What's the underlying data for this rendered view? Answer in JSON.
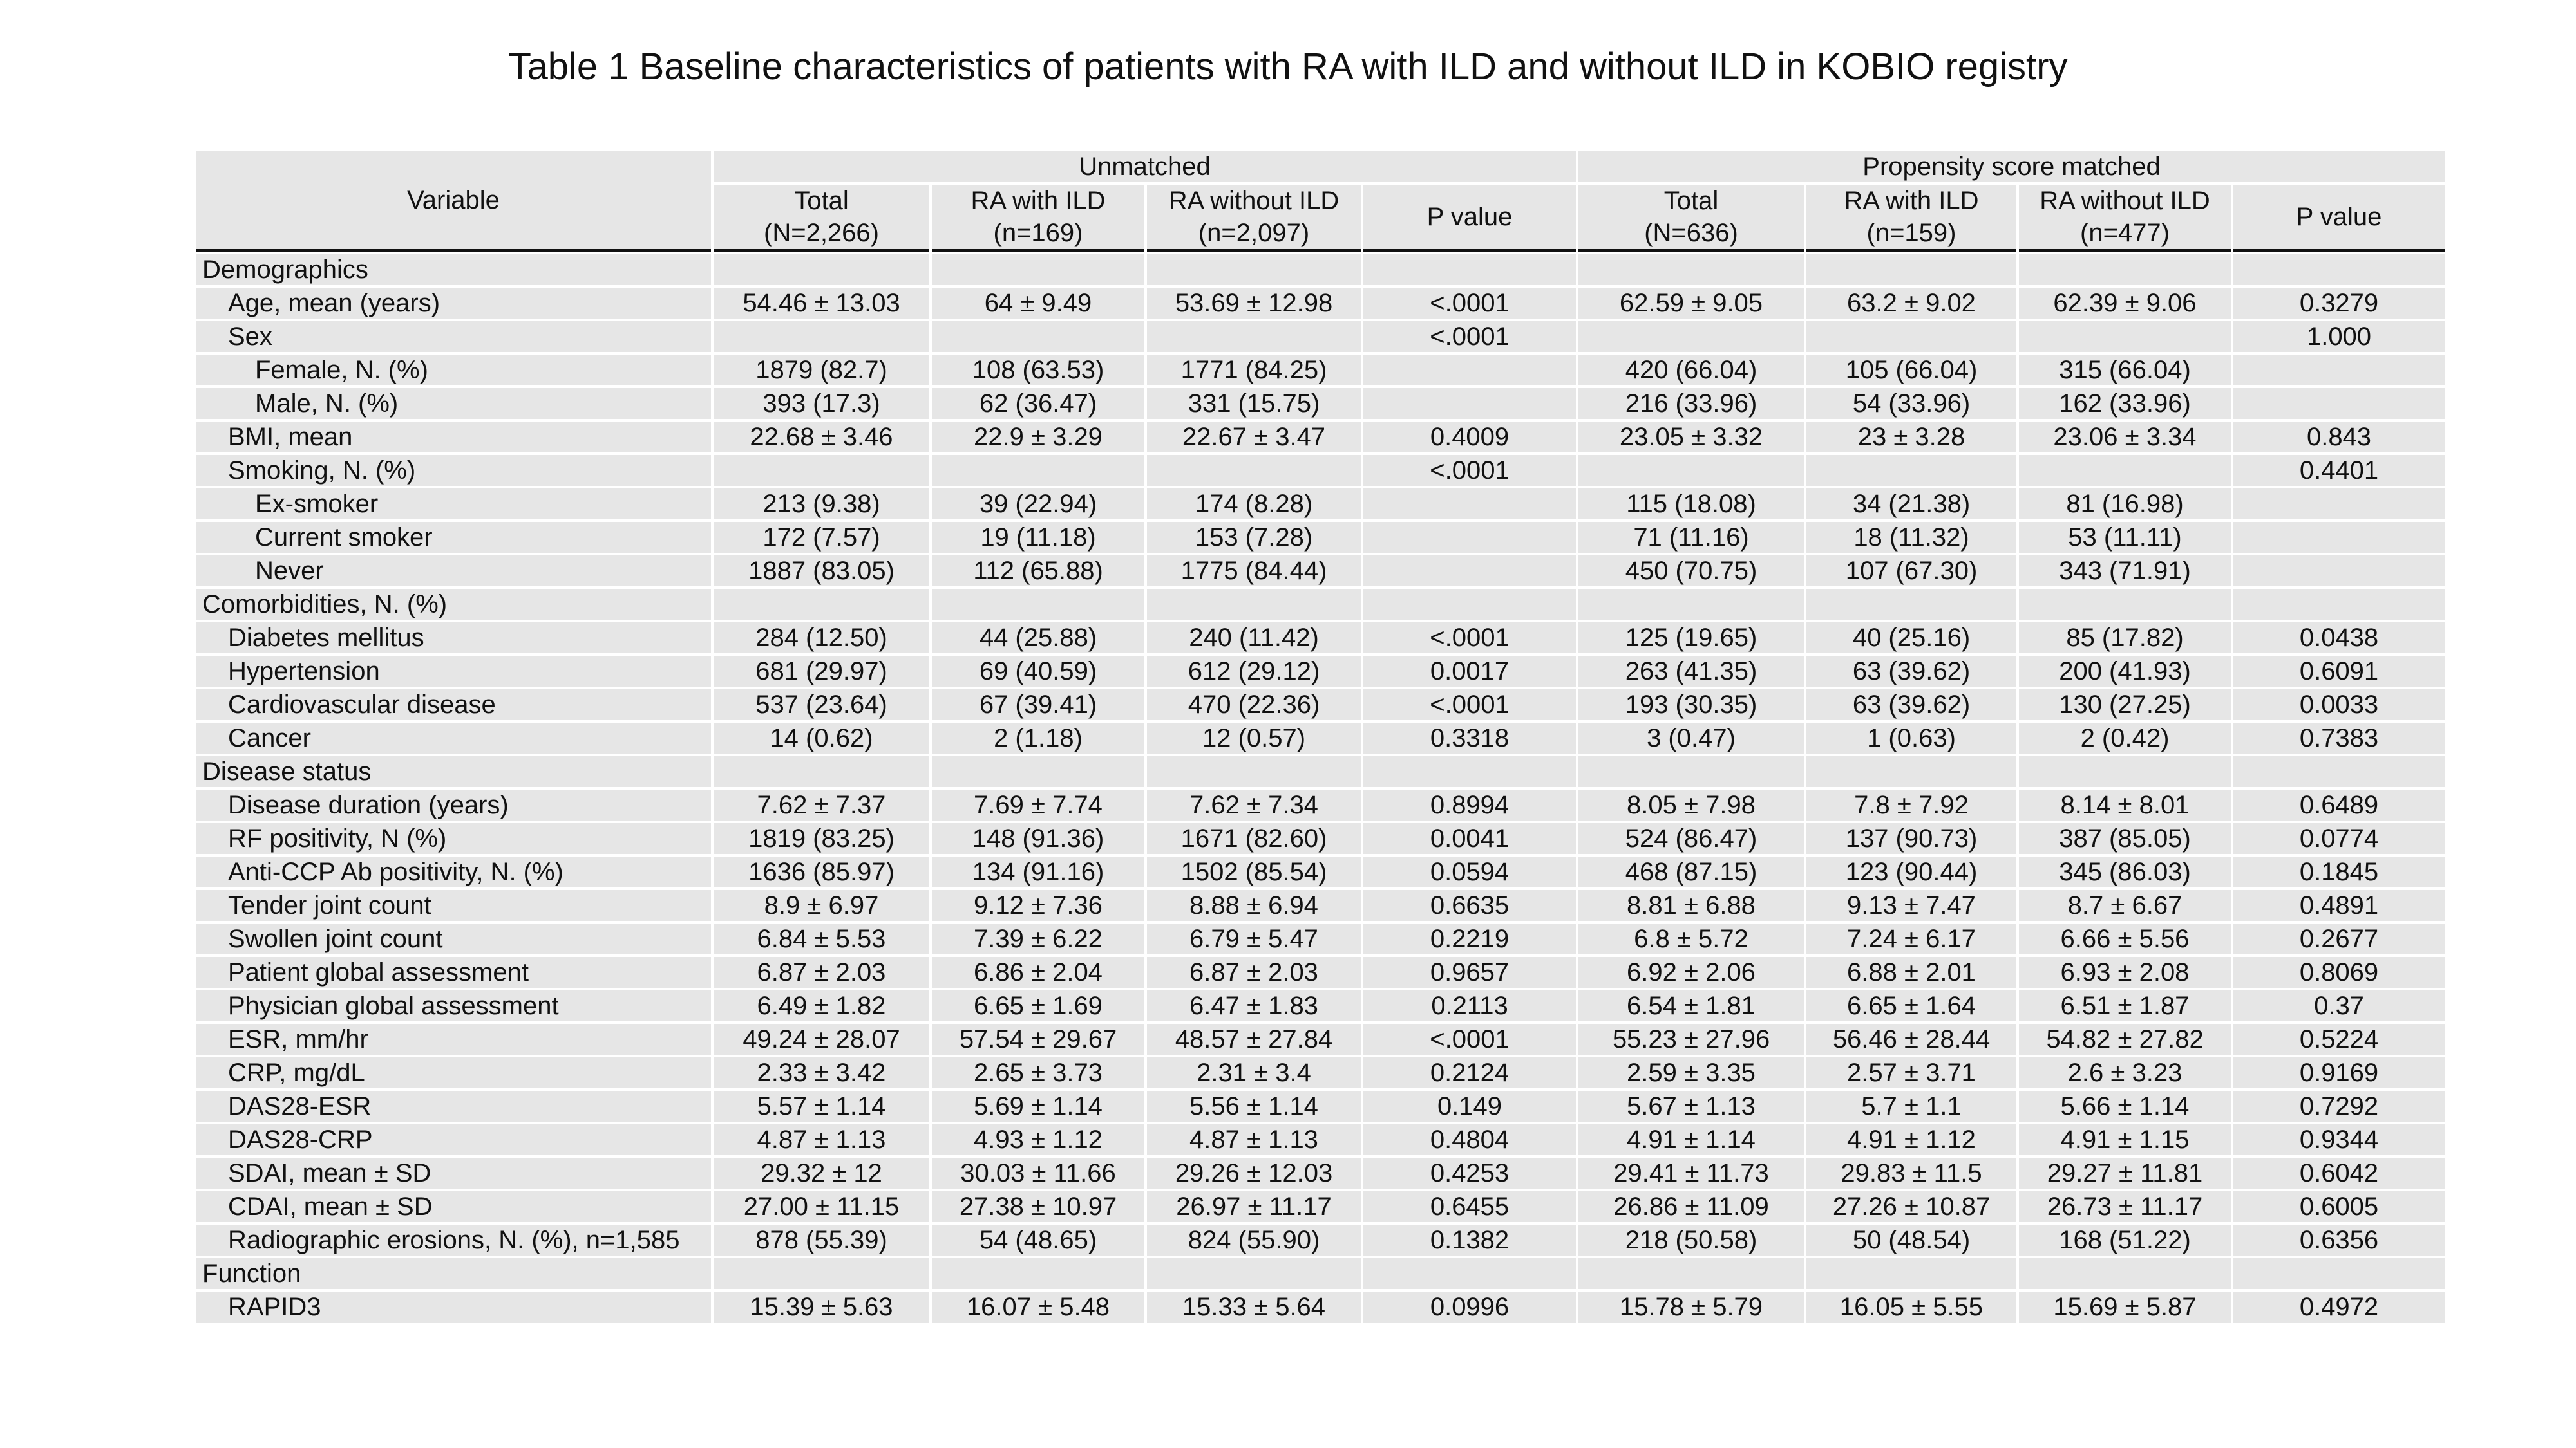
{
  "title": "Table 1 Baseline characteristics of patients with RA with ILD and without ILD in KOBIO registry",
  "header": {
    "variable": "Variable",
    "unmatched": "Unmatched",
    "matched": "Propensity score matched",
    "cols": [
      [
        "Total",
        "(N=2,266)"
      ],
      [
        "RA with ILD",
        "(n=169)"
      ],
      [
        "RA without ILD",
        "(n=2,097)"
      ],
      [
        "P value",
        ""
      ],
      [
        "Total",
        "(N=636)"
      ],
      [
        "RA with ILD",
        "(n=159)"
      ],
      [
        "RA without ILD",
        "(n=477)"
      ],
      [
        "P value",
        ""
      ]
    ]
  },
  "rows": [
    {
      "label": "Demographics",
      "level": 0,
      "values": [
        "",
        "",
        "",
        "",
        "",
        "",
        "",
        ""
      ]
    },
    {
      "label": "Age, mean (years)",
      "level": 1,
      "values": [
        "54.46 ± 13.03",
        "64 ± 9.49",
        "53.69 ± 12.98",
        "<.0001",
        "62.59 ± 9.05",
        "63.2 ± 9.02",
        "62.39 ± 9.06",
        "0.3279"
      ]
    },
    {
      "label": "Sex",
      "level": 1,
      "values": [
        "",
        "",
        "",
        "<.0001",
        "",
        "",
        "",
        "1.000"
      ]
    },
    {
      "label": "Female, N. (%)",
      "level": 2,
      "values": [
        "1879 (82.7)",
        "108 (63.53)",
        "1771 (84.25)",
        "",
        "420 (66.04)",
        "105 (66.04)",
        "315 (66.04)",
        ""
      ]
    },
    {
      "label": "Male, N. (%)",
      "level": 2,
      "values": [
        "393 (17.3)",
        "62 (36.47)",
        "331 (15.75)",
        "",
        "216 (33.96)",
        "54 (33.96)",
        "162 (33.96)",
        ""
      ]
    },
    {
      "label": "BMI, mean",
      "level": 1,
      "values": [
        "22.68 ± 3.46",
        "22.9 ± 3.29",
        "22.67 ± 3.47",
        "0.4009",
        "23.05 ± 3.32",
        "23 ± 3.28",
        "23.06 ± 3.34",
        "0.843"
      ]
    },
    {
      "label": "Smoking, N. (%)",
      "level": 1,
      "values": [
        "",
        "",
        "",
        "<.0001",
        "",
        "",
        "",
        "0.4401"
      ]
    },
    {
      "label": "Ex-smoker",
      "level": 2,
      "values": [
        "213 (9.38)",
        "39 (22.94)",
        "174 (8.28)",
        "",
        "115 (18.08)",
        "34 (21.38)",
        "81 (16.98)",
        ""
      ]
    },
    {
      "label": "Current smoker",
      "level": 2,
      "values": [
        "172 (7.57)",
        "19 (11.18)",
        "153 (7.28)",
        "",
        "71 (11.16)",
        "18 (11.32)",
        "53 (11.11)",
        ""
      ]
    },
    {
      "label": "Never",
      "level": 2,
      "values": [
        "1887 (83.05)",
        "112 (65.88)",
        "1775 (84.44)",
        "",
        "450 (70.75)",
        "107 (67.30)",
        "343 (71.91)",
        ""
      ]
    },
    {
      "label": "Comorbidities, N. (%)",
      "level": 0,
      "values": [
        "",
        "",
        "",
        "",
        "",
        "",
        "",
        ""
      ]
    },
    {
      "label": "Diabetes mellitus",
      "level": 1,
      "values": [
        "284 (12.50)",
        "44 (25.88)",
        "240 (11.42)",
        "<.0001",
        "125 (19.65)",
        "40 (25.16)",
        "85 (17.82)",
        "0.0438"
      ]
    },
    {
      "label": "Hypertension",
      "level": 1,
      "values": [
        "681 (29.97)",
        "69 (40.59)",
        "612 (29.12)",
        "0.0017",
        "263 (41.35)",
        "63 (39.62)",
        "200 (41.93)",
        "0.6091"
      ]
    },
    {
      "label": "Cardiovascular disease",
      "level": 1,
      "values": [
        "537 (23.64)",
        "67 (39.41)",
        "470 (22.36)",
        "<.0001",
        "193 (30.35)",
        "63 (39.62)",
        "130 (27.25)",
        "0.0033"
      ]
    },
    {
      "label": "Cancer",
      "level": 1,
      "values": [
        "14 (0.62)",
        "2 (1.18)",
        "12 (0.57)",
        "0.3318",
        "3 (0.47)",
        "1 (0.63)",
        "2 (0.42)",
        "0.7383"
      ]
    },
    {
      "label": "Disease status",
      "level": 0,
      "values": [
        "",
        "",
        "",
        "",
        "",
        "",
        "",
        ""
      ]
    },
    {
      "label": "Disease duration (years)",
      "level": 1,
      "values": [
        "7.62 ± 7.37",
        "7.69 ± 7.74",
        "7.62 ± 7.34",
        "0.8994",
        "8.05 ± 7.98",
        "7.8 ± 7.92",
        "8.14 ± 8.01",
        "0.6489"
      ]
    },
    {
      "label": "RF positivity, N (%)",
      "level": 1,
      "values": [
        "1819 (83.25)",
        "148 (91.36)",
        "1671 (82.60)",
        "0.0041",
        "524 (86.47)",
        "137 (90.73)",
        "387 (85.05)",
        "0.0774"
      ]
    },
    {
      "label": "Anti-CCP Ab positivity, N. (%)",
      "level": 1,
      "values": [
        "1636 (85.97)",
        "134 (91.16)",
        "1502 (85.54)",
        "0.0594",
        "468 (87.15)",
        "123 (90.44)",
        "345 (86.03)",
        "0.1845"
      ]
    },
    {
      "label": "Tender joint count",
      "level": 1,
      "values": [
        "8.9 ± 6.97",
        "9.12 ± 7.36",
        "8.88 ± 6.94",
        "0.6635",
        "8.81 ± 6.88",
        "9.13 ± 7.47",
        "8.7 ± 6.67",
        "0.4891"
      ]
    },
    {
      "label": "Swollen joint count",
      "level": 1,
      "values": [
        "6.84 ± 5.53",
        "7.39 ± 6.22",
        "6.79 ± 5.47",
        "0.2219",
        "6.8 ± 5.72",
        "7.24 ± 6.17",
        "6.66 ± 5.56",
        "0.2677"
      ]
    },
    {
      "label": "Patient global assessment",
      "level": 1,
      "values": [
        "6.87 ± 2.03",
        "6.86 ± 2.04",
        "6.87 ± 2.03",
        "0.9657",
        "6.92 ± 2.06",
        "6.88 ± 2.01",
        "6.93 ± 2.08",
        "0.8069"
      ]
    },
    {
      "label": "Physician global assessment",
      "level": 1,
      "values": [
        "6.49 ± 1.82",
        "6.65 ± 1.69",
        "6.47 ± 1.83",
        "0.2113",
        "6.54 ± 1.81",
        "6.65 ± 1.64",
        "6.51 ± 1.87",
        "0.37"
      ]
    },
    {
      "label": "ESR, mm/hr",
      "level": 1,
      "values": [
        "49.24 ± 28.07",
        "57.54 ± 29.67",
        "48.57 ± 27.84",
        "<.0001",
        "55.23 ± 27.96",
        "56.46 ± 28.44",
        "54.82 ± 27.82",
        "0.5224"
      ]
    },
    {
      "label": "CRP, mg/dL",
      "level": 1,
      "values": [
        "2.33 ± 3.42",
        "2.65 ± 3.73",
        "2.31 ± 3.4",
        "0.2124",
        "2.59 ± 3.35",
        "2.57 ± 3.71",
        "2.6 ± 3.23",
        "0.9169"
      ]
    },
    {
      "label": "DAS28-ESR",
      "level": 1,
      "values": [
        "5.57 ± 1.14",
        "5.69 ± 1.14",
        "5.56 ± 1.14",
        "0.149",
        "5.67 ± 1.13",
        "5.7 ± 1.1",
        "5.66 ± 1.14",
        "0.7292"
      ]
    },
    {
      "label": "DAS28-CRP",
      "level": 1,
      "values": [
        "4.87 ± 1.13",
        "4.93 ± 1.12",
        "4.87 ± 1.13",
        "0.4804",
        "4.91 ± 1.14",
        "4.91 ± 1.12",
        "4.91 ± 1.15",
        "0.9344"
      ]
    },
    {
      "label": "SDAI, mean ± SD",
      "level": 1,
      "values": [
        "29.32 ± 12",
        "30.03 ± 11.66",
        "29.26 ± 12.03",
        "0.4253",
        "29.41 ± 11.73",
        "29.83 ± 11.5",
        "29.27 ± 11.81",
        "0.6042"
      ]
    },
    {
      "label": "CDAI, mean ± SD",
      "level": 1,
      "values": [
        "27.00 ± 11.15",
        "27.38 ± 10.97",
        "26.97 ± 11.17",
        "0.6455",
        "26.86 ± 11.09",
        "27.26 ± 10.87",
        "26.73 ± 11.17",
        "0.6005"
      ]
    },
    {
      "label": "Radiographic erosions, N. (%), n=1,585",
      "level": 1,
      "values": [
        "878 (55.39)",
        "54 (48.65)",
        "824 (55.90)",
        "0.1382",
        "218 (50.58)",
        "50 (48.54)",
        "168 (51.22)",
        "0.6356"
      ]
    },
    {
      "label": "Function",
      "level": 0,
      "values": [
        "",
        "",
        "",
        "",
        "",
        "",
        "",
        ""
      ]
    },
    {
      "label": "RAPID3",
      "level": 1,
      "values": [
        "15.39 ± 5.63",
        "16.07 ± 5.48",
        "15.33 ± 5.64",
        "0.0996",
        "15.78 ± 5.79",
        "16.05 ± 5.55",
        "15.69 ± 5.87",
        "0.4972"
      ]
    }
  ]
}
